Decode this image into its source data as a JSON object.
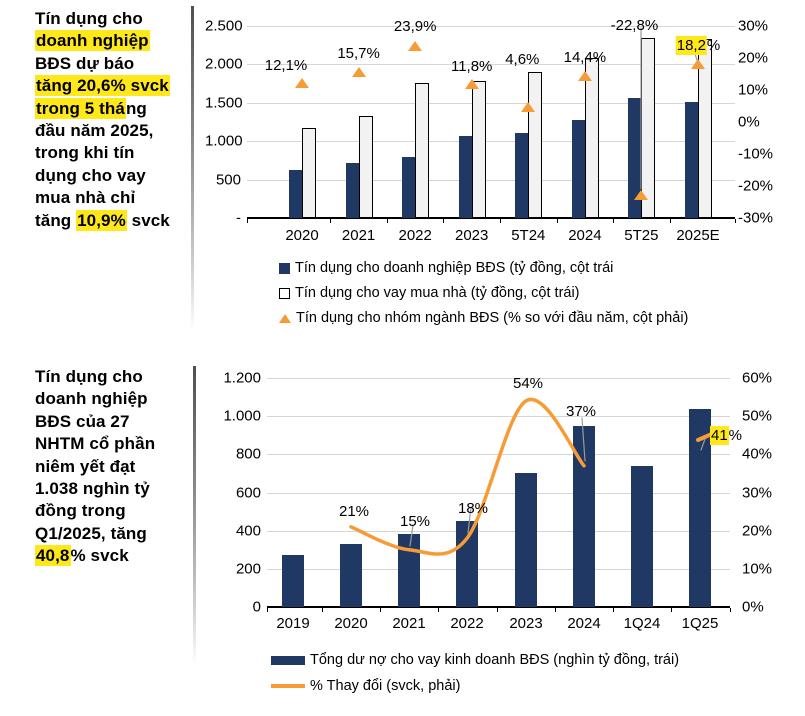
{
  "commentary_top": {
    "lines": [
      [
        {
          "t": "Tín dụng cho",
          "h": false
        }
      ],
      [
        {
          "t": "doanh nghiệp",
          "h": true
        }
      ],
      [
        {
          "t": "BĐS dự báo",
          "h": false
        }
      ],
      [
        {
          "t": "tăng 20,6% svck",
          "h": true
        }
      ],
      [
        {
          "t": "trong 5 thá",
          "h": true
        },
        {
          "t": "ng",
          "h": false
        }
      ],
      [
        {
          "t": "đầu năm 2025,",
          "h": false
        }
      ],
      [
        {
          "t": "trong khi tín",
          "h": false
        }
      ],
      [
        {
          "t": "dụng cho vay",
          "h": false
        }
      ],
      [
        {
          "t": "mua nhà chỉ",
          "h": false
        }
      ],
      [
        {
          "t": "tăng ",
          "h": false
        },
        {
          "t": "10,9%",
          "h": true
        },
        {
          "t": " svck",
          "h": false
        }
      ]
    ]
  },
  "commentary_bottom": {
    "lines": [
      [
        {
          "t": "Tín dụng cho",
          "h": false
        }
      ],
      [
        {
          "t": "doanh nghiệp",
          "h": false
        }
      ],
      [
        {
          "t": "BĐS của 27",
          "h": false
        }
      ],
      [
        {
          "t": "NHTM cổ phần",
          "h": false
        }
      ],
      [
        {
          "t": "niêm yết đạt",
          "h": false
        }
      ],
      [
        {
          "t": "1.038 nghìn tỷ",
          "h": false
        }
      ],
      [
        {
          "t": "đồng trong",
          "h": false
        }
      ],
      [
        {
          "t": "Q1/2025, tăng",
          "h": false
        }
      ],
      [
        {
          "t": "40,8",
          "h": true
        },
        {
          "t": "% svck",
          "h": false
        }
      ]
    ]
  },
  "chart_data": [
    {
      "type": "bar+scatter",
      "categories": [
        "2020",
        "2021",
        "2022",
        "2023",
        "5T24",
        "2024",
        "5T25",
        "2025E"
      ],
      "series": [
        {
          "name": "Tín dụng cho doanh nghiệp BĐS (tỷ đồng, cột trái",
          "type": "bar",
          "color": "#1F3864",
          "values": [
            620,
            715,
            790,
            1070,
            1105,
            1275,
            1560,
            1510
          ]
        },
        {
          "name": "Tín dụng cho vay mua nhà (tỷ đồng, cột trái)",
          "type": "bar",
          "color": "#F2F2F2",
          "values": [
            1170,
            1330,
            1760,
            1780,
            1900,
            2080,
            2350,
            2330
          ]
        },
        {
          "name": "Tín dụng cho nhóm ngành BĐS (% so với đầu năm, cột phải)",
          "type": "scatter",
          "marker": "triangle",
          "color": "#F79C34",
          "axis": "right",
          "values": [
            12.1,
            15.7,
            23.9,
            11.8,
            4.6,
            14.4,
            -22.8,
            18.2
          ]
        }
      ],
      "labels": [
        [
          {
            "t": "12,1%",
            "h": false
          }
        ],
        [
          {
            "t": "15,7%",
            "h": false
          }
        ],
        [
          {
            "t": "23,9%",
            "h": false
          }
        ],
        [
          {
            "t": "11,8%",
            "h": false
          }
        ],
        [
          {
            "t": "4,6%",
            "h": false
          }
        ],
        [
          {
            "t": "14,4%",
            "h": false
          }
        ],
        [
          {
            "t": "-22,8%",
            "h": false
          }
        ],
        [
          {
            "t": "18,2",
            "h": true
          },
          {
            "t": "%",
            "h": false
          }
        ]
      ],
      "left_axis": {
        "ticks": [
          "2.500",
          "2.000",
          "1.500",
          "1.000",
          "500",
          "-"
        ],
        "range": [
          0,
          2500
        ],
        "grid": true
      },
      "right_axis": {
        "ticks": [
          "30%",
          "20%",
          "10%",
          "0%",
          "-10%",
          "-20%",
          "-30%"
        ],
        "range": [
          -30,
          30
        ]
      },
      "legend_position": "bottom"
    },
    {
      "type": "bar+line",
      "categories": [
        "2019",
        "2020",
        "2021",
        "2022",
        "2023",
        "2024",
        "1Q24",
        "1Q25"
      ],
      "series": [
        {
          "name": "Tổng dư nợ cho vay kinh doanh BĐS (nghìn tỷ đồng, trái)",
          "type": "bar",
          "color": "#1F3864",
          "values": [
            275,
            330,
            385,
            450,
            700,
            950,
            740,
            1038
          ]
        },
        {
          "name": "% Thay đổi (svck, phải)",
          "type": "line",
          "color": "#F79C34",
          "axis": "right",
          "values": [
            null,
            21,
            15,
            18,
            54,
            37,
            null,
            41
          ]
        }
      ],
      "labels": [
        null,
        [
          {
            "t": "21%",
            "h": false
          }
        ],
        [
          {
            "t": "15%",
            "h": false
          }
        ],
        [
          {
            "t": "18%",
            "h": false
          }
        ],
        [
          {
            "t": "54%",
            "h": false
          }
        ],
        [
          {
            "t": "37%",
            "h": false
          }
        ],
        null,
        [
          {
            "t": "41",
            "h": true
          },
          {
            "t": "%",
            "h": false
          }
        ]
      ],
      "left_axis": {
        "ticks": [
          "1.200",
          "1.000",
          "800",
          "600",
          "400",
          "200",
          "0"
        ],
        "range": [
          0,
          1200
        ],
        "grid": true
      },
      "right_axis": {
        "ticks": [
          "60%",
          "50%",
          "40%",
          "30%",
          "20%",
          "10%",
          "0%"
        ],
        "range": [
          0,
          60
        ]
      },
      "legend_position": "bottom"
    }
  ],
  "colors": {
    "navy": "#1F3864",
    "orange": "#F79C34",
    "highlight": "#FFE81A",
    "gridline": "#D6D6D6"
  }
}
